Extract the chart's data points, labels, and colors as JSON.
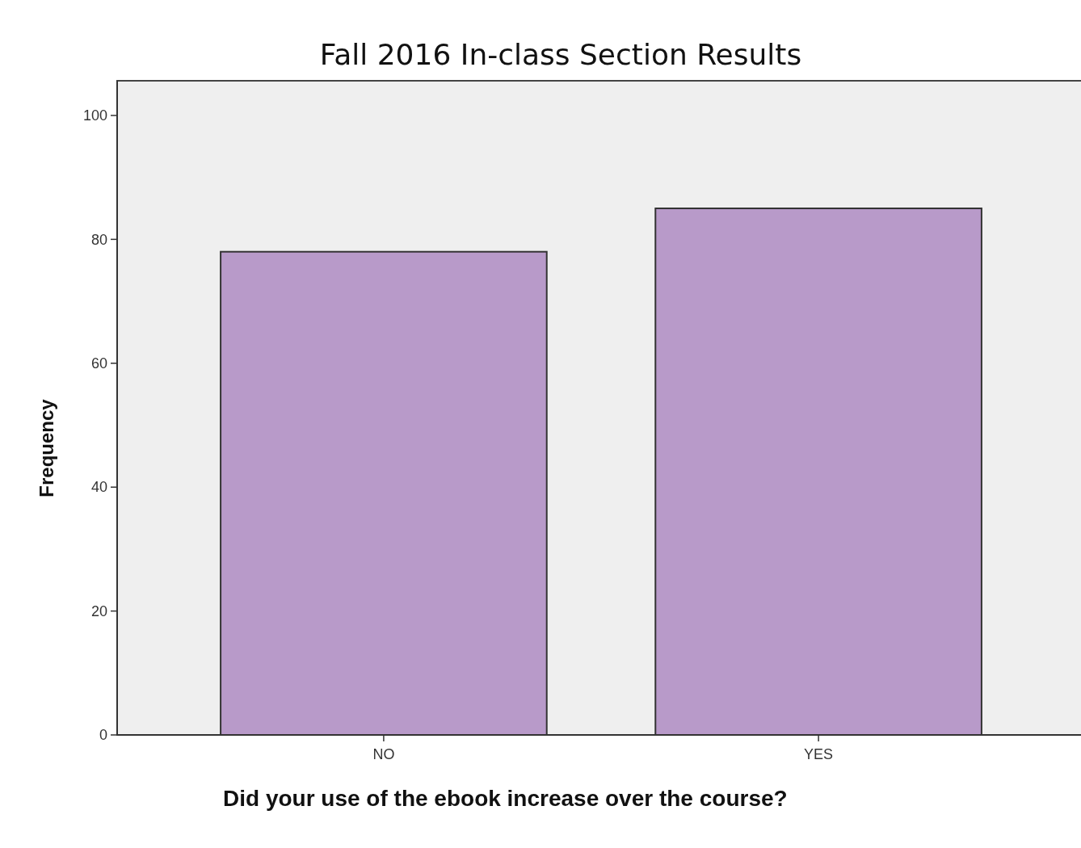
{
  "chart_data": {
    "type": "bar",
    "title": "Fall 2016  In-class Section Results",
    "xlabel": "Did your use of the ebook increase over the course?",
    "ylabel": "Frequency",
    "categories": [
      "NO",
      "YES"
    ],
    "values": [
      78,
      85
    ],
    "color": "#b89ac9",
    "ylim": [
      0,
      105.6
    ],
    "yticks": [
      0,
      20,
      40,
      60,
      80,
      100
    ],
    "grid": false
  }
}
